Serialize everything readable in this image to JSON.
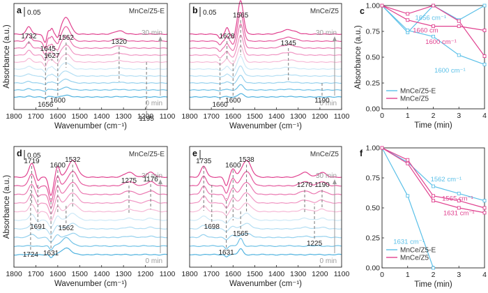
{
  "chart_data": [
    {
      "id": "a",
      "type": "line",
      "panel_label": "a",
      "sample_label": "MnCe/Z5-E",
      "scale_bar": "0.05",
      "x_ticks": [
        "1800",
        "1700",
        "1600",
        "1500",
        "1400",
        "1300",
        "1200",
        "1100"
      ],
      "xlim": [
        1800,
        1100
      ],
      "xlabel": "Wavenumber (cm⁻¹)",
      "ylabel": "Absorbance (a.u.)",
      "time_start": "0 min",
      "time_end": "30 min",
      "upper_peaks": [
        "1732",
        "1645",
        "1627",
        "1562",
        "1320"
      ],
      "lower_peaks": [
        "1656",
        "1600",
        "1195"
      ]
    },
    {
      "id": "b",
      "type": "line",
      "panel_label": "b",
      "sample_label": "MnCe/Z5",
      "scale_bar": "0.05",
      "x_ticks": [
        "1800",
        "1700",
        "1600",
        "1500",
        "1400",
        "1300",
        "1200",
        "1100"
      ],
      "xlim": [
        1800,
        1100
      ],
      "xlabel": "Wavenumber (cm⁻¹)",
      "ylabel": "",
      "time_start": "0 min",
      "time_end": "30 min",
      "upper_peaks": [
        "1628",
        "1565",
        "1345"
      ],
      "lower_peaks": [
        "1660",
        "1600",
        "1190"
      ]
    },
    {
      "id": "c",
      "type": "line",
      "panel_label": "c",
      "xlabel": "Time (min)",
      "ylabel": "Absorbance (a.u.)",
      "x_ticks": [
        "0",
        "1",
        "2",
        "3",
        "4"
      ],
      "y_ticks": [
        "0.00",
        "0.25",
        "0.50",
        "0.75",
        "1.00"
      ],
      "xlim": [
        0,
        4
      ],
      "ylim": [
        0,
        1
      ],
      "legend": [
        "MnCe/Z5-E",
        "MnCe/Z5"
      ],
      "series": [
        {
          "name": "MnCe/Z5-E",
          "peak": "1656 cm⁻¹",
          "color": "#5bc0e8",
          "x": [
            0,
            1,
            2,
            3,
            4
          ],
          "values": [
            1.0,
            0.74,
            1.0,
            0.86,
            1.0
          ]
        },
        {
          "name": "MnCe/Z5-E",
          "peak": "1600 cm⁻¹",
          "color": "#5bc0e8",
          "x": [
            0,
            1,
            2,
            3,
            4
          ],
          "values": [
            1.0,
            0.76,
            0.7,
            0.52,
            0.43
          ]
        },
        {
          "name": "MnCe/Z5",
          "peak": "1660 cm",
          "color": "#e0418f",
          "x": [
            0,
            1,
            2,
            3,
            4
          ],
          "values": [
            1.0,
            0.86,
            0.8,
            0.8,
            0.76
          ]
        },
        {
          "name": "MnCe/Z5",
          "peak": "1600 cm⁻¹",
          "color": "#e0418f",
          "x": [
            0,
            1,
            2,
            3,
            4
          ],
          "values": [
            1.0,
            0.92,
            1.0,
            0.85,
            0.51
          ]
        }
      ]
    },
    {
      "id": "d",
      "type": "line",
      "panel_label": "d",
      "sample_label": "MnCe/Z5-E",
      "scale_bar": "0.05",
      "x_ticks": [
        "1800",
        "1700",
        "1600",
        "1500",
        "1400",
        "1300",
        "1200",
        "1100"
      ],
      "xlim": [
        1800,
        1100
      ],
      "xlabel": "Wavenumber (cm⁻¹)",
      "ylabel": "Absorbance (a.u.)",
      "time_start": "0 min",
      "time_end": "30 min",
      "upper_peaks": [
        "1719",
        "1600",
        "1532",
        "1275",
        "1176"
      ],
      "lower_peaks": [
        "1691",
        "1724",
        "1631",
        "1562"
      ]
    },
    {
      "id": "e",
      "type": "line",
      "panel_label": "e",
      "sample_label": "MnCe/Z5",
      "scale_bar": "",
      "x_ticks": [
        "1800",
        "1700",
        "1600",
        "1500",
        "1400",
        "1300",
        "1200",
        "1100"
      ],
      "xlim": [
        1800,
        1100
      ],
      "xlabel": "Wavenumber (cm⁻¹)",
      "ylabel": "",
      "time_start": "0 min",
      "time_end": "30 min",
      "upper_peaks": [
        "1735",
        "1600",
        "1538",
        "1270",
        "1190"
      ],
      "lower_peaks": [
        "1698",
        "1631",
        "1565",
        "1225"
      ]
    },
    {
      "id": "f",
      "type": "line",
      "panel_label": "f",
      "xlabel": "Time (min)",
      "ylabel": "",
      "x_ticks": [
        "0",
        "1",
        "2",
        "3",
        "4"
      ],
      "y_ticks": [
        "0.00",
        "0.25",
        "0.50",
        "0.75",
        "1.00"
      ],
      "xlim": [
        0,
        4
      ],
      "ylim": [
        0,
        1
      ],
      "legend": [
        "MnCe/Z5-E",
        "MnCe/Z5"
      ],
      "series": [
        {
          "name": "MnCe/Z5-E",
          "peak": "1562 cm⁻¹",
          "color": "#5bc0e8",
          "x": [
            0,
            1,
            2,
            3,
            4
          ],
          "values": [
            1.0,
            0.88,
            0.68,
            0.62,
            0.56
          ]
        },
        {
          "name": "MnCe/Z5-E",
          "peak": "1631 cm⁻¹",
          "color": "#5bc0e8",
          "x": [
            0,
            1,
            2
          ],
          "values": [
            1.0,
            0.6,
            0.0
          ]
        },
        {
          "name": "MnCe/Z5",
          "peak": "1565 cm⁻¹",
          "color": "#e0418f",
          "x": [
            0,
            1,
            2,
            3,
            4
          ],
          "values": [
            1.0,
            0.9,
            0.6,
            0.56,
            0.5
          ]
        },
        {
          "name": "MnCe/Z5",
          "peak": "1631 cm⁻¹",
          "color": "#e0418f",
          "x": [
            0,
            1,
            2,
            3,
            4
          ],
          "values": [
            1.0,
            0.87,
            0.56,
            0.5,
            0.46
          ]
        }
      ]
    }
  ]
}
